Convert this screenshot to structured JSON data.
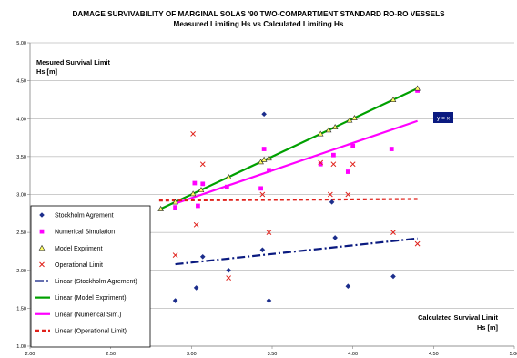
{
  "chart_data": {
    "type": "scatter",
    "title": "DAMAGE SURVIVABILITY OF MARGINAL SOLAS '90  TWO-COMPARTMENT STANDARD RO-RO VESSELS",
    "subtitle": "Measured Limiting Hs vs Calculated Limiting Hs",
    "ylabel_lines": [
      "Mesured Survival Limit",
      "Hs [m]"
    ],
    "xlabel_lines": [
      "Calculated Survival Limit",
      "Hs [m]"
    ],
    "xlim": [
      2.0,
      5.0
    ],
    "ylim": [
      1.0,
      5.0
    ],
    "xticks": [
      "2.00",
      "2.50",
      "3.00",
      "3.50",
      "4.00",
      "4.50",
      "5.00"
    ],
    "yticks": [
      "1.00",
      "1.50",
      "2.00",
      "2.50",
      "3.00",
      "3.50",
      "4.00",
      "4.50",
      "5.00"
    ],
    "grid": "horizontal",
    "legend_position": "bottom-left",
    "annotation": "y = x",
    "series": [
      {
        "name": "Stockholm Agrement",
        "marker": "diamond",
        "color": "#1c2e8c",
        "points": [
          [
            2.9,
            1.6
          ],
          [
            3.03,
            1.77
          ],
          [
            3.07,
            2.18
          ],
          [
            3.23,
            2.0
          ],
          [
            3.44,
            2.27
          ],
          [
            3.45,
            4.06
          ],
          [
            3.48,
            1.6
          ],
          [
            3.87,
            2.9
          ],
          [
            3.89,
            2.43
          ],
          [
            3.97,
            1.79
          ],
          [
            4.25,
            1.92
          ]
        ]
      },
      {
        "name": "Numerical Simulation",
        "marker": "square",
        "color": "#ff00ff",
        "points": [
          [
            2.9,
            2.83
          ],
          [
            3.02,
            3.15
          ],
          [
            3.04,
            2.85
          ],
          [
            3.07,
            3.14
          ],
          [
            3.22,
            3.1
          ],
          [
            3.43,
            3.08
          ],
          [
            3.45,
            3.6
          ],
          [
            3.48,
            3.32
          ],
          [
            3.8,
            3.4
          ],
          [
            3.88,
            3.52
          ],
          [
            3.97,
            3.3
          ],
          [
            4.0,
            3.64
          ],
          [
            4.24,
            3.6
          ],
          [
            4.4,
            4.37
          ]
        ]
      },
      {
        "name": "Model Expriment",
        "marker": "triangle",
        "color": "#ffff66",
        "points": [
          [
            2.81,
            2.81
          ],
          [
            2.9,
            2.9
          ],
          [
            3.01,
            3.01
          ],
          [
            3.06,
            3.06
          ],
          [
            3.23,
            3.23
          ],
          [
            3.43,
            3.43
          ],
          [
            3.45,
            3.46
          ],
          [
            3.48,
            3.48
          ],
          [
            3.8,
            3.8
          ],
          [
            3.85,
            3.85
          ],
          [
            3.89,
            3.89
          ],
          [
            3.98,
            3.98
          ],
          [
            4.01,
            4.01
          ],
          [
            4.25,
            4.25
          ],
          [
            4.4,
            4.4
          ]
        ]
      },
      {
        "name": "Operational Limit",
        "marker": "x",
        "color": "#e0201a",
        "points": [
          [
            2.9,
            2.2
          ],
          [
            3.01,
            3.8
          ],
          [
            3.03,
            2.6
          ],
          [
            3.07,
            3.4
          ],
          [
            3.23,
            1.9
          ],
          [
            3.44,
            3.0
          ],
          [
            3.48,
            2.5
          ],
          [
            3.8,
            3.42
          ],
          [
            3.86,
            3.0
          ],
          [
            3.88,
            3.4
          ],
          [
            3.97,
            3.0
          ],
          [
            4.0,
            3.4
          ],
          [
            4.25,
            2.5
          ],
          [
            4.4,
            2.35
          ]
        ]
      }
    ],
    "trendlines": [
      {
        "name": "Linear (Stockholm Agrement)",
        "color": "#0a1a80",
        "dash": "dashdot",
        "x": [
          2.9,
          4.4
        ],
        "y": [
          2.08,
          2.42
        ]
      },
      {
        "name": "Linear (Model Expriment)",
        "color": "#00a000",
        "dash": "solid",
        "x": [
          2.8,
          4.4
        ],
        "y": [
          2.8,
          4.4
        ]
      },
      {
        "name": "Linear (Numerical Sim.)",
        "color": "#ff00ff",
        "dash": "solid",
        "x": [
          2.9,
          4.4
        ],
        "y": [
          2.88,
          3.97
        ]
      },
      {
        "name": "Linear (Operational Limit)",
        "color": "#e0201a",
        "dash": "dashed",
        "x": [
          2.8,
          4.4
        ],
        "y": [
          2.92,
          2.94
        ]
      }
    ]
  }
}
